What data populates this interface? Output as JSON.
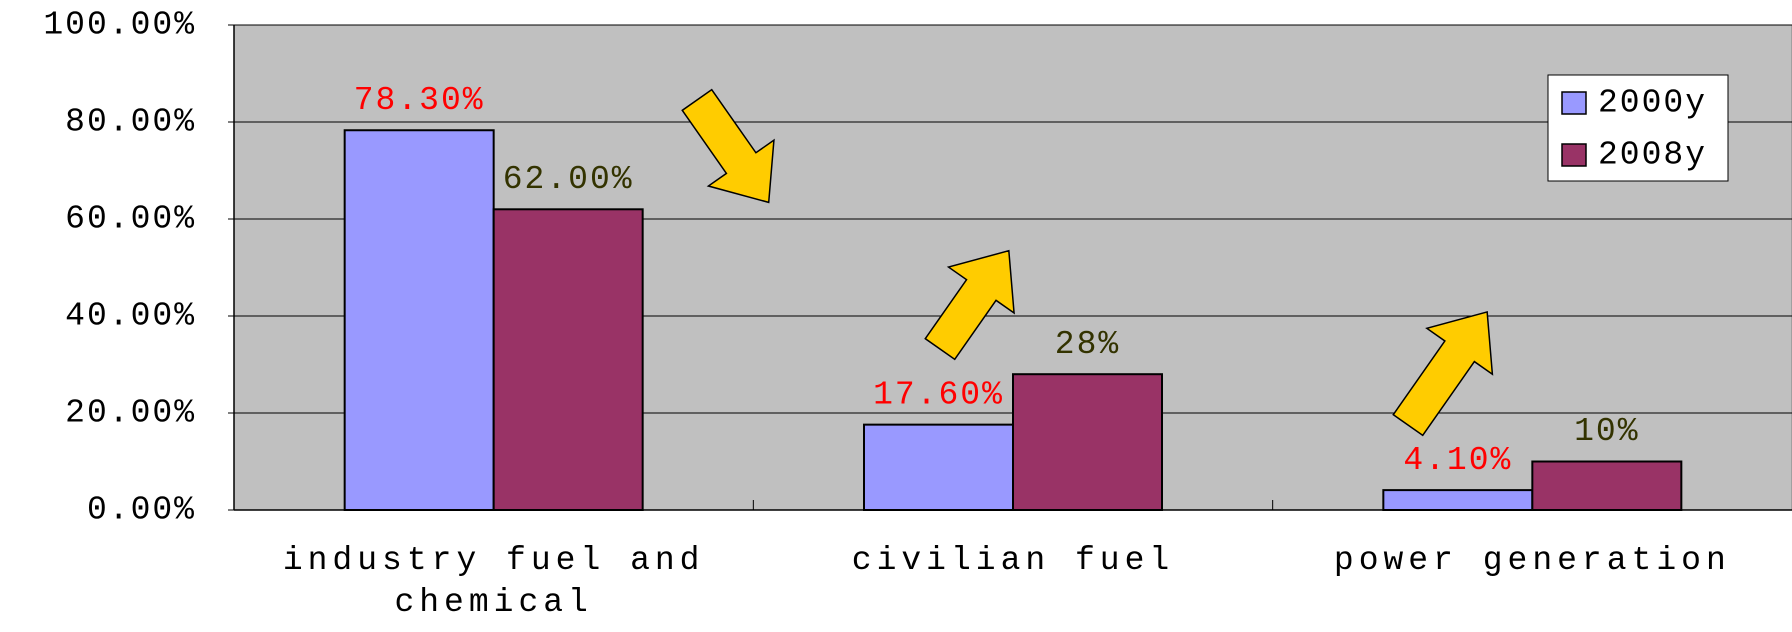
{
  "chart_data": {
    "type": "bar",
    "categories": [
      "industry fuel and chemical",
      "civilian fuel",
      "power generation"
    ],
    "series": [
      {
        "name": "2000y",
        "color": "#9999ff",
        "label_color": "#ff0000",
        "values": [
          78.3,
          17.6,
          4.1
        ],
        "value_labels": [
          "78.30%",
          "17.60%",
          "4.10%"
        ]
      },
      {
        "name": "2008y",
        "color": "#993366",
        "label_color": "#333300",
        "values": [
          62,
          28,
          10
        ],
        "value_labels": [
          "62.00%",
          "28%",
          "10%"
        ]
      }
    ],
    "ylim": [
      0,
      100
    ],
    "yticks": [
      {
        "value": 0,
        "label": "0.00%"
      },
      {
        "value": 20,
        "label": "20.00%"
      },
      {
        "value": 40,
        "label": "40.00%"
      },
      {
        "value": 60,
        "label": "60.00%"
      },
      {
        "value": 80,
        "label": "80.00%"
      },
      {
        "value": 100,
        "label": "100.00%"
      }
    ],
    "grid": true,
    "legend": "upper right",
    "plot_background": "#c0c0c0"
  }
}
